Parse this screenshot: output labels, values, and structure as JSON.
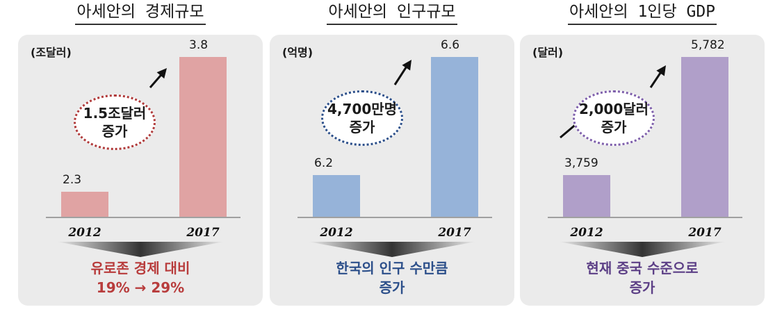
{
  "chart_data": [
    {
      "type": "bar",
      "title": "아세안의 경제규모",
      "unit": "(조달러)",
      "categories": [
        "2012",
        "2017"
      ],
      "values": [
        2.3,
        3.8
      ],
      "value_labels": [
        "2.3",
        "3.8"
      ],
      "bar_color": "#e0a3a3",
      "annotation": {
        "line1": "1.5조달러",
        "line2": "증가",
        "border_color": "#b03a3a"
      },
      "summary": {
        "line1": "유로존 경제 대비",
        "line2": "19% → 29%",
        "color": "#b83c3c"
      }
    },
    {
      "type": "bar",
      "title": "아세안의 인구규모",
      "unit": "(억명)",
      "categories": [
        "2012",
        "2017"
      ],
      "values": [
        6.2,
        6.6
      ],
      "value_labels": [
        "6.2",
        "6.6"
      ],
      "bar_color": "#96b3d9",
      "annotation": {
        "line1": "4,700만명",
        "line2": "증가",
        "border_color": "#2c4f8a"
      },
      "summary": {
        "line1": "한국의 인구 수만큼",
        "line2": "증가",
        "color": "#2c4f8a"
      }
    },
    {
      "type": "bar",
      "title": "아세안의 1인당 GDP",
      "unit": "(달러)",
      "categories": [
        "2012",
        "2017"
      ],
      "values": [
        3759,
        5782
      ],
      "value_labels": [
        "3,759",
        "5,782"
      ],
      "bar_color": "#b09fc9",
      "annotation": {
        "line1": "2,000달러",
        "line2": "증가",
        "border_color": "#7e5fab"
      },
      "summary": {
        "line1": "현재 중국 수준으로",
        "line2": "증가",
        "color": "#5c3f86"
      }
    }
  ]
}
